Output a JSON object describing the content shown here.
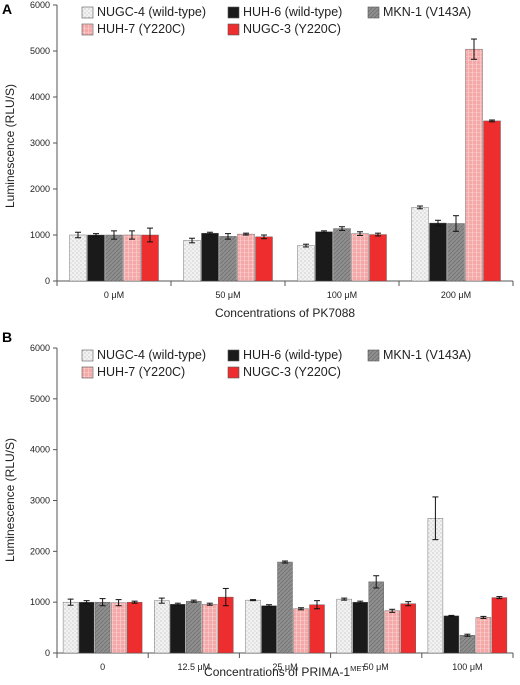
{
  "chart_data": [
    {
      "type": "bar",
      "panel_label": "A",
      "xlabel": "Concentrations of PK7088",
      "ylabel": "Luminescence (RLU/S)",
      "ylim": [
        0,
        6000
      ],
      "yticks": [
        "0",
        "1000",
        "2000",
        "3000",
        "4000",
        "5000",
        "6000"
      ],
      "categories": [
        "0 μM",
        "50 μM",
        "100 μM",
        "200 μM"
      ],
      "legend_position": "top-left",
      "series": [
        {
          "name": "NUGC-4 (wild-type)",
          "values": [
            1000,
            880,
            770,
            1600
          ],
          "errors": [
            60,
            50,
            30,
            30
          ],
          "color": "#e8e8e8",
          "pattern": "dots"
        },
        {
          "name": "HUH-6 (wild-type)",
          "values": [
            1000,
            1040,
            1070,
            1260
          ],
          "errors": [
            30,
            20,
            20,
            60
          ],
          "color": "#1a1a1a",
          "pattern": "solid"
        },
        {
          "name": "MKN-1 (V143A)",
          "values": [
            1000,
            970,
            1140,
            1250
          ],
          "errors": [
            90,
            60,
            40,
            170
          ],
          "color": "#8c8c8c",
          "pattern": "hatch"
        },
        {
          "name": "HUH-7 (Y220C)",
          "values": [
            1000,
            1020,
            1030,
            5040
          ],
          "errors": [
            90,
            20,
            40,
            220
          ],
          "color": "#f4a6a6",
          "pattern": "grid"
        },
        {
          "name": "NUGC-3 (Y220C)",
          "values": [
            1000,
            960,
            1010,
            3480
          ],
          "errors": [
            150,
            40,
            30,
            20
          ],
          "color": "#ee2e2e",
          "pattern": "solid"
        }
      ]
    },
    {
      "type": "bar",
      "panel_label": "B",
      "xlabel": "Concentrations of PRIMA-1",
      "xlabel_sup": "MET",
      "ylabel": "Luminescence (RLU/S)",
      "ylim": [
        0,
        6000
      ],
      "yticks": [
        "0",
        "1000",
        "2000",
        "3000",
        "4000",
        "5000",
        "6000"
      ],
      "categories": [
        "0",
        "12.5 μM",
        "25 μM",
        "50 μM",
        "100 μM"
      ],
      "legend_position": "top-left",
      "series": [
        {
          "name": "NUGC-4 (wild-type)",
          "values": [
            1000,
            1030,
            1040,
            1060,
            2650
          ],
          "errors": [
            60,
            50,
            10,
            20,
            420
          ],
          "color": "#e8e8e8",
          "pattern": "dots"
        },
        {
          "name": "HUH-6 (wild-type)",
          "values": [
            1000,
            960,
            930,
            1000,
            730
          ],
          "errors": [
            30,
            20,
            20,
            20,
            10
          ],
          "color": "#1a1a1a",
          "pattern": "solid"
        },
        {
          "name": "MKN-1 (V143A)",
          "values": [
            1000,
            1020,
            1790,
            1400,
            350
          ],
          "errors": [
            70,
            20,
            20,
            120,
            20
          ],
          "color": "#8c8c8c",
          "pattern": "hatch"
        },
        {
          "name": "HUH-7 (Y220C)",
          "values": [
            990,
            960,
            870,
            830,
            700
          ],
          "errors": [
            60,
            20,
            20,
            30,
            20
          ],
          "color": "#f4a6a6",
          "pattern": "grid"
        },
        {
          "name": "NUGC-3 (Y220C)",
          "values": [
            1000,
            1100,
            950,
            970,
            1090
          ],
          "errors": [
            20,
            170,
            80,
            40,
            20
          ],
          "color": "#ee2e2e",
          "pattern": "solid"
        }
      ]
    }
  ]
}
